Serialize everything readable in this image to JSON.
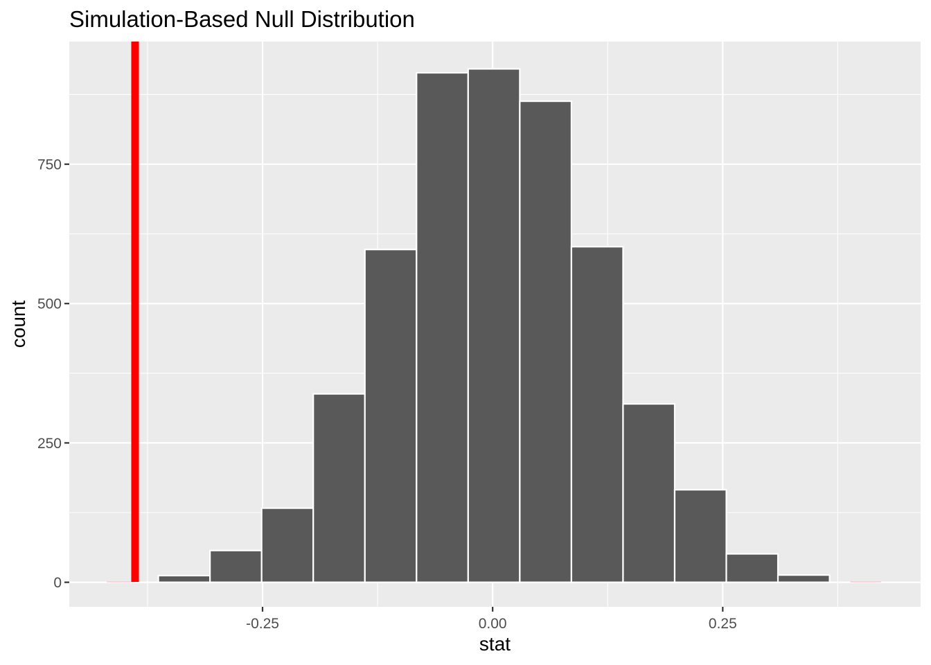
{
  "chart_data": {
    "type": "bar",
    "title": "Simulation-Based Null Distribution",
    "xlabel": "stat",
    "ylabel": "count",
    "xlim": [
      -0.46,
      0.465
    ],
    "ylim": [
      -44,
      970
    ],
    "x_major_ticks": [
      -0.25,
      0.0,
      0.25
    ],
    "x_tick_labels": [
      "-0.25",
      "0.00",
      "0.25"
    ],
    "x_minor_ticks": [
      -0.375,
      -0.125,
      0.125,
      0.375
    ],
    "y_major_ticks": [
      0,
      250,
      500,
      750
    ],
    "y_tick_labels": [
      "0",
      "250",
      "500",
      "750"
    ],
    "y_minor_ticks": [
      125,
      375,
      625,
      875
    ],
    "bins": [
      {
        "x_min": -0.4193,
        "x_max": -0.3632,
        "count": 0
      },
      {
        "x_min": -0.3632,
        "x_max": -0.3071,
        "count": 12
      },
      {
        "x_min": -0.3071,
        "x_max": -0.251,
        "count": 57
      },
      {
        "x_min": -0.251,
        "x_max": -0.1949,
        "count": 133
      },
      {
        "x_min": -0.1949,
        "x_max": -0.1388,
        "count": 338
      },
      {
        "x_min": -0.1388,
        "x_max": -0.0827,
        "count": 597
      },
      {
        "x_min": -0.0827,
        "x_max": -0.0266,
        "count": 914
      },
      {
        "x_min": -0.0266,
        "x_max": 0.0295,
        "count": 921
      },
      {
        "x_min": 0.0295,
        "x_max": 0.0856,
        "count": 863
      },
      {
        "x_min": 0.0856,
        "x_max": 0.1417,
        "count": 602
      },
      {
        "x_min": 0.1417,
        "x_max": 0.1978,
        "count": 320
      },
      {
        "x_min": 0.1978,
        "x_max": 0.2539,
        "count": 166
      },
      {
        "x_min": 0.2539,
        "x_max": 0.31,
        "count": 51
      },
      {
        "x_min": 0.31,
        "x_max": 0.3661,
        "count": 13
      },
      {
        "x_min": 0.3661,
        "x_max": 0.4222,
        "count": 0
      }
    ],
    "observed_stat": -0.3885,
    "shade_direction": "two-sided",
    "shaded_regions": [
      [
        -0.4193,
        -0.3885
      ],
      [
        0.3885,
        0.4222
      ]
    ],
    "colors": {
      "panel": "#ebebeb",
      "grid": "#ffffff",
      "bar_fill": "#595959",
      "bar_outline": "#ffffff",
      "observed_line": "#ff0000",
      "shade": "#ffc0cb",
      "tick_text": "#4d4d4d",
      "axis_tick": "#333333"
    },
    "legend": "none"
  }
}
